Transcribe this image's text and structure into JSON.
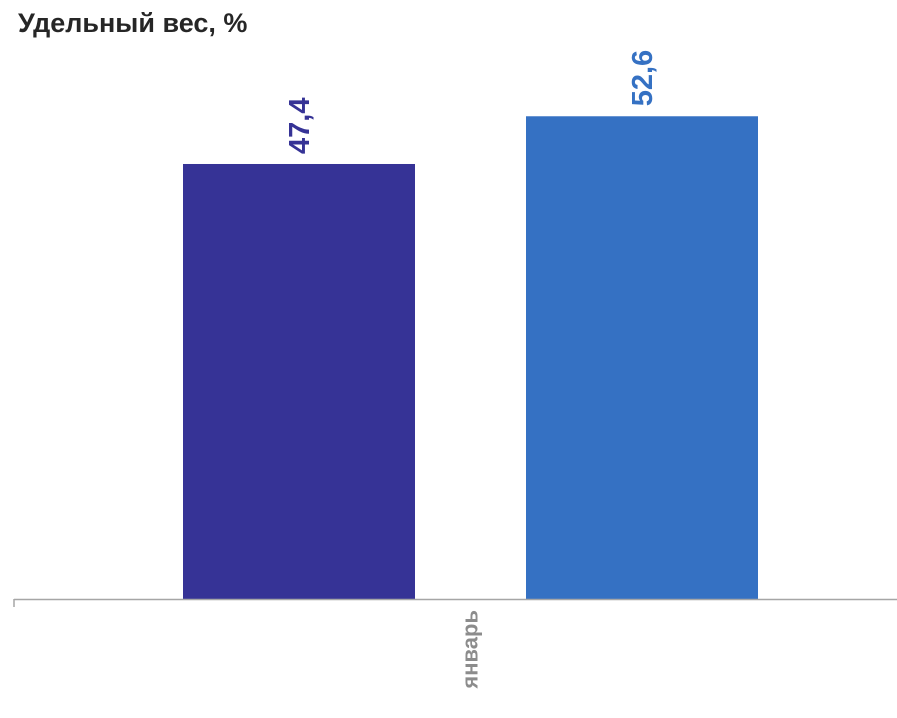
{
  "chart_data": {
    "type": "bar",
    "title": "Удельный вес, %",
    "xlabel": "",
    "ylabel": "",
    "categories": [
      "январь"
    ],
    "series": [
      {
        "values": [
          47.4
        ],
        "labels": [
          "47,4"
        ],
        "color": "#363396"
      },
      {
        "values": [
          52.6
        ],
        "labels": [
          "52,6"
        ],
        "color": "#3571c3"
      }
    ],
    "ylim": [
      0,
      62
    ],
    "grid": false,
    "legend": "none",
    "colors": {
      "axis": "#a6a6a6",
      "category_text": "#8c8c8c"
    }
  }
}
